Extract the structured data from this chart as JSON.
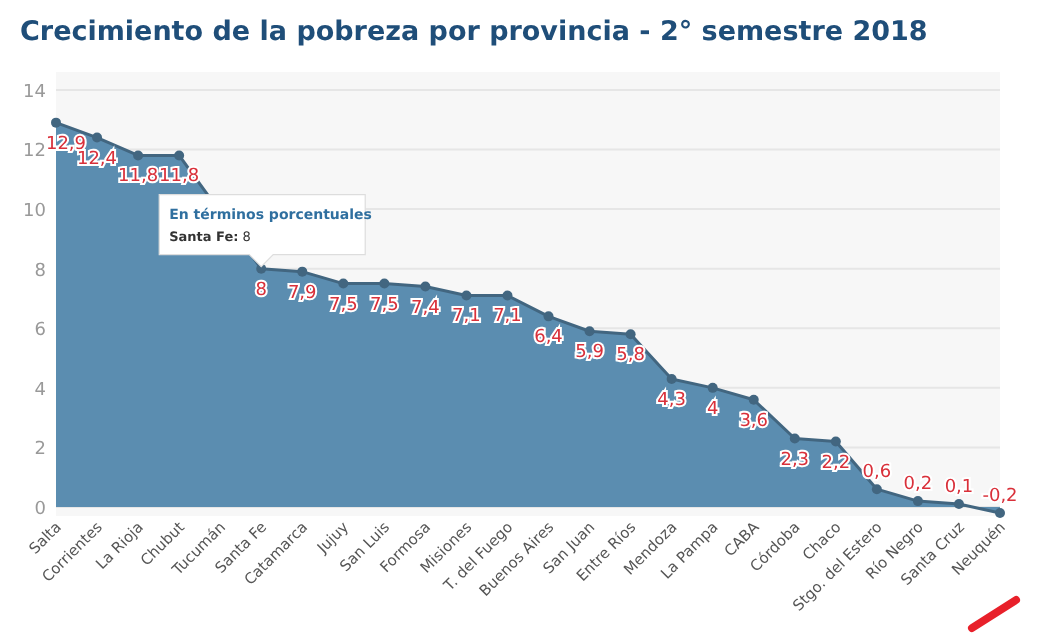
{
  "chart_data": {
    "type": "area",
    "title": "Crecimiento de la pobreza por provincia - 2° semestre 2018",
    "categories": [
      "Salta",
      "Corrientes",
      "La Rioja",
      "Chubut",
      "Tucumán",
      "Santa Fe",
      "Catamarca",
      "Jujuy",
      "San Luis",
      "Formosa",
      "Misiones",
      "T. del Fuego",
      "Buenos Aires",
      "San Juan",
      "Entre Ríos",
      "Mendoza",
      "La Pampa",
      "CABA",
      "Córdoba",
      "Chaco",
      "Stgo. del Estero",
      "Río Negro",
      "Santa Cruz",
      "Neuquén"
    ],
    "values": [
      12.9,
      12.4,
      11.8,
      11.8,
      null,
      8,
      7.9,
      7.5,
      7.5,
      7.4,
      7.1,
      7.1,
      6.4,
      5.9,
      5.8,
      4.3,
      4,
      3.6,
      2.3,
      2.2,
      0.6,
      0.2,
      0.1,
      -0.2
    ],
    "value_labels": [
      "12,9",
      "12,4",
      "11,8",
      "11,8",
      null,
      "8",
      "7,9",
      "7,5",
      "7,5",
      "7,4",
      "7,1",
      "7,1",
      "6,4",
      "5,9",
      "5,8",
      "4,3",
      "4",
      "3,6",
      "2,3",
      "2,2",
      "0,6",
      "0,2",
      "0,1",
      "-0,2"
    ],
    "color": "#5b8db0",
    "ylim": [
      -0.3,
      14.6
    ],
    "yticks": [
      0,
      2,
      4,
      6,
      8,
      10,
      12,
      14
    ],
    "grid": "y",
    "marker": "circle",
    "annotations": [
      "En términos porcentuales",
      "Santa Fe: 8"
    ]
  }
}
